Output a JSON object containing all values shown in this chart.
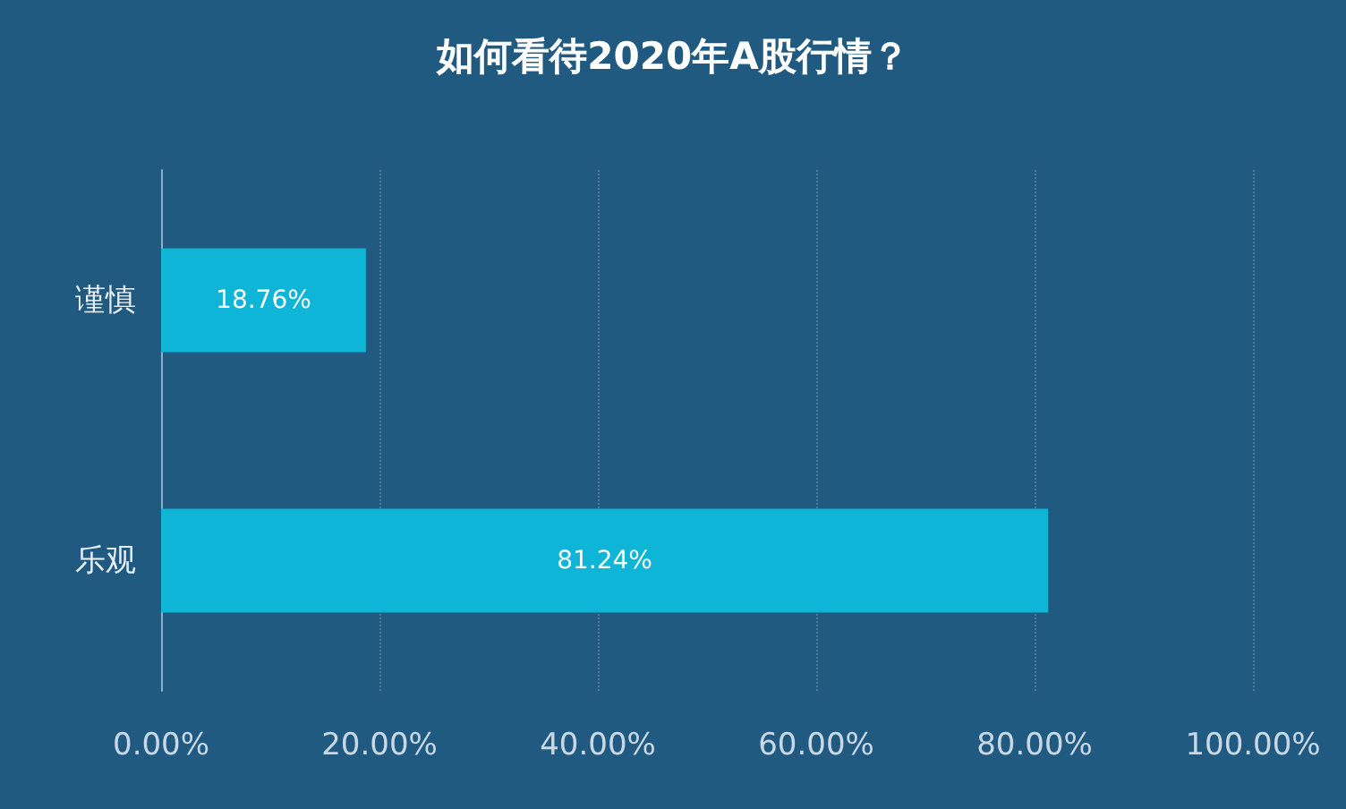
{
  "chart_data": {
    "type": "bar",
    "orientation": "horizontal",
    "title": "如何看待2020年A股行情？",
    "categories": [
      "谨慎",
      "乐观"
    ],
    "values": [
      18.76,
      81.24
    ],
    "value_labels": [
      "18.76%",
      "81.24%"
    ],
    "color": "#0fb5d6",
    "xlim": [
      0,
      100
    ],
    "xticks": [
      {
        "value": 0,
        "label": "0.00%"
      },
      {
        "value": 20,
        "label": "20.00%"
      },
      {
        "value": 40,
        "label": "40.00%"
      },
      {
        "value": 60,
        "label": "60.00%"
      },
      {
        "value": 80,
        "label": "80.00%"
      },
      {
        "value": 100,
        "label": "100.00%"
      }
    ],
    "grid": "x"
  }
}
